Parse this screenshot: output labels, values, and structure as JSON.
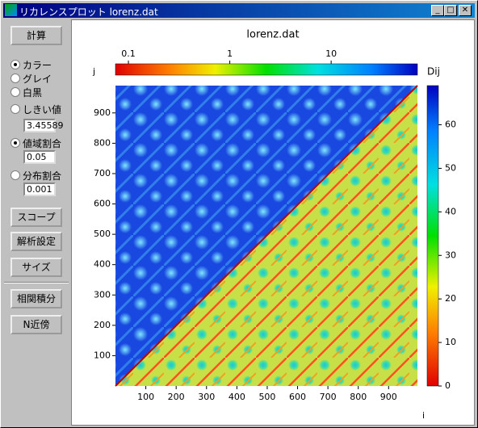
{
  "window": {
    "title": "リカレンスプロット lorenz.dat"
  },
  "panel": {
    "compute": "計算",
    "modes": [
      "カラー",
      "グレイ",
      "白黒"
    ],
    "threshold": {
      "label": "しきい値",
      "value": "3.45589"
    },
    "range_ratio": {
      "label": "値域割合",
      "value": "0.05"
    },
    "dist_ratio": {
      "label": "分布割合",
      "value": "0.001"
    },
    "buttons": [
      "スコープ",
      "解析設定",
      "サイズ"
    ],
    "buttons2": [
      "相関積分",
      "N近傍"
    ]
  },
  "plot": {
    "title": "lorenz.dat",
    "xlabel": "i",
    "ylabel": "j",
    "colorbar_label": "Dij",
    "xlim": [
      0,
      995
    ],
    "ylim": [
      0,
      990
    ],
    "xticks": [
      100,
      200,
      300,
      400,
      500,
      600,
      700,
      800,
      900
    ],
    "yticks": [
      100,
      200,
      300,
      400,
      500,
      600,
      700,
      800,
      900
    ],
    "clim": [
      0,
      69
    ],
    "cticks": [
      0,
      10,
      20,
      30,
      40,
      50,
      60
    ],
    "log_clim": [
      0.0745,
      71
    ],
    "log_cticks": [
      0.1,
      1,
      10
    ]
  }
}
